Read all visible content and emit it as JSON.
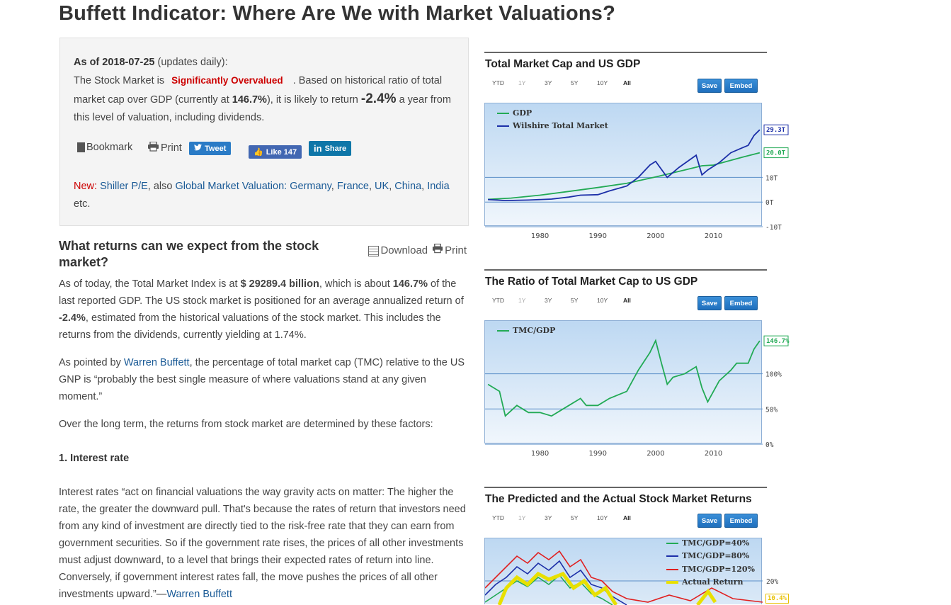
{
  "page": {
    "title": "Buffett Indicator: Where Are We with Market Valuations?"
  },
  "summary": {
    "as_of_label": "As of",
    "as_of_date": "2018-07-25",
    "updates": "(updates daily):",
    "line1_prefix": "The Stock Market is",
    "valuation_badge": "Significantly Overvalued",
    "line1_suffix": ". Based on historical ratio of total market cap over GDP (currently at",
    "ratio": "146.7%",
    "line2_mid": "), it is likely to return",
    "expected_return": "-2.4%",
    "line2_suffix": "a year from this level of valuation, including dividends.",
    "bookmark_label": "Bookmark",
    "print_label": "Print",
    "tweet_label": "Tweet",
    "like_label": "Like 147",
    "share_label": "Share",
    "new_label": "New:",
    "shiller_link": "Shiller P/E",
    "also_text": ", also",
    "global_link": "Global Market Valuation:",
    "countries": [
      "Germany",
      "France",
      "UK",
      "China",
      "India"
    ],
    "etc": "etc."
  },
  "article": {
    "heading": "What returns can we expect from the stock market?",
    "download_label": "Download",
    "print_label": "Print",
    "p1_a": "As of today, the Total Market Index is at",
    "p1_index": "$ 29289.4 billion",
    "p1_b": ", which is about",
    "p1_pct": "146.7%",
    "p1_c": "of the last reported GDP. The US stock market is positioned for an average annualized return of",
    "p1_ret": "-2.4%",
    "p1_d": ", estimated from the historical valuations of the stock market. This includes the returns from the dividends, currently yielding at 1.74%.",
    "p2_a": "As pointed by",
    "p2_link": "Warren Buffett",
    "p2_b": ", the percentage of total market cap (TMC) relative to the US GNP is “probably the best single measure of where valuations stand at any given moment.”",
    "p3": "Over the long term, the returns from stock market are determined by these factors:",
    "factor1": "1. Interest rate",
    "p4": "Interest rates “act on financial valuations the way gravity acts on matter: The higher the rate, the greater the downward pull. That's because the rates of return that investors need from any kind of investment are directly tied to the risk-free rate that they can earn from government securities. So if the government rate rises, the prices of all other investments must adjust downward, to a level that brings their expected rates of return into line. Conversely, if government interest rates fall, the move pushes the prices of all other investments upward.”—",
    "p4_link": "Warren Buffett"
  },
  "chart_controls": {
    "ranges": [
      "YTD",
      "1Y",
      "3Y",
      "5Y",
      "10Y",
      "All"
    ],
    "save_label": "Save",
    "embed_label": "Embed"
  },
  "chart_data": [
    {
      "type": "line",
      "title": "Total Market Cap and US GDP",
      "x_ticks": [
        "1980",
        "1990",
        "2000",
        "2010"
      ],
      "y_ticks": [
        "10T",
        "0T",
        "-10T"
      ],
      "ylim": [
        -10,
        40
      ],
      "series": [
        {
          "name": "GDP",
          "color": "#22aa55",
          "last_label": "20.0T",
          "x": [
            1971,
            1975,
            1980,
            1985,
            1990,
            1995,
            2000,
            2005,
            2008,
            2010,
            2015,
            2018
          ],
          "values": [
            1.1,
            1.6,
            2.8,
            4.3,
            5.9,
            7.6,
            10.2,
            13.0,
            14.7,
            15.0,
            18.2,
            20.0
          ]
        },
        {
          "name": "Wilshire Total Market",
          "color": "#1c2fa8",
          "last_label": "29.3T",
          "x": [
            1971,
            1974,
            1978,
            1982,
            1985,
            1987,
            1990,
            1992,
            1995,
            1997,
            1999,
            2000,
            2002,
            2004,
            2007,
            2008,
            2009,
            2011,
            2013,
            2015,
            2016,
            2017,
            2018
          ],
          "values": [
            1.0,
            0.6,
            0.8,
            1.2,
            2.0,
            2.8,
            3.0,
            4.5,
            6.5,
            10.0,
            15.0,
            16.5,
            10.0,
            14.0,
            19.0,
            11.0,
            13.0,
            16.0,
            20.0,
            22.0,
            23.0,
            27.0,
            29.3
          ]
        }
      ]
    },
    {
      "type": "line",
      "title": "The Ratio of Total Market Cap to US GDP",
      "x_ticks": [
        "1980",
        "1990",
        "2000",
        "2010"
      ],
      "y_ticks": [
        "100%",
        "50%",
        "0%"
      ],
      "ylim": [
        0,
        175
      ],
      "series": [
        {
          "name": "TMC/GDP",
          "color": "#22aa55",
          "last_label": "146.7%",
          "x": [
            1971,
            1972,
            1973,
            1974,
            1976,
            1978,
            1980,
            1982,
            1985,
            1987,
            1988,
            1990,
            1992,
            1995,
            1997,
            1999,
            2000,
            2001,
            2002,
            2003,
            2005,
            2007,
            2008,
            2009,
            2011,
            2013,
            2014,
            2016,
            2017,
            2018
          ],
          "values": [
            85,
            80,
            75,
            40,
            55,
            45,
            45,
            40,
            55,
            65,
            55,
            55,
            65,
            75,
            105,
            130,
            147,
            115,
            85,
            95,
            100,
            110,
            80,
            60,
            90,
            105,
            115,
            115,
            135,
            146.7
          ]
        }
      ]
    },
    {
      "type": "line",
      "title": "The Predicted and the Actual Stock Market Returns",
      "y_ticks": [
        "20%"
      ],
      "series": [
        {
          "name": "TMC/GDP=40%",
          "color": "#22aa55"
        },
        {
          "name": "TMC/GDP=80%",
          "color": "#1c2fa8"
        },
        {
          "name": "TMC/GDP=120%",
          "color": "#e02020"
        },
        {
          "name": "Actual Return",
          "color": "#e8e000",
          "last_label": "10.4%"
        }
      ]
    }
  ]
}
